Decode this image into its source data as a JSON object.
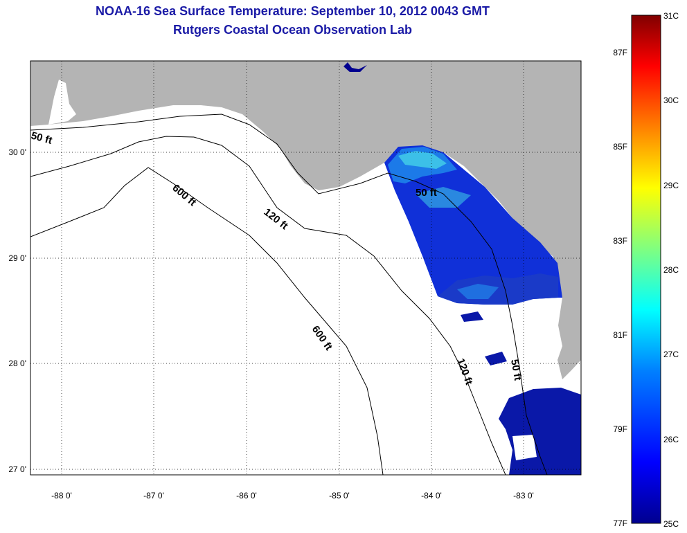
{
  "title_line1": "NOAA-16 Sea Surface Temperature:  September 10, 2012 0043 GMT",
  "title_line2": "Rutgers Coastal Ocean Observation Lab",
  "map": {
    "lon_labels": [
      "-88 0'",
      "-87 0'",
      "-86 0'",
      "-85 0'",
      "-84 0'",
      "-83 0'"
    ],
    "lat_labels": [
      "30 0'",
      "29 0'",
      "28 0'",
      "27 0'"
    ],
    "contour_labels": [
      "50 ft",
      "600 ft",
      "120 ft",
      "50 ft",
      "600 ft",
      "120 ft",
      "50 ft"
    ],
    "colors": {
      "land": "#b4b4b4",
      "water_nodata": "#ffffff",
      "title": "#1a1aa6"
    }
  },
  "colorbar": {
    "celsius_labels": [
      "31C",
      "30C",
      "29C",
      "28C",
      "27C",
      "26C",
      "25C"
    ],
    "fahrenheit_labels": [
      "87F",
      "85F",
      "83F",
      "81F",
      "79F",
      "77F"
    ],
    "colors": [
      "#00008f",
      "#0000ff",
      "#0080ff",
      "#00ffff",
      "#80ff80",
      "#ffff00",
      "#ff8000",
      "#ff0000",
      "#800000"
    ]
  }
}
